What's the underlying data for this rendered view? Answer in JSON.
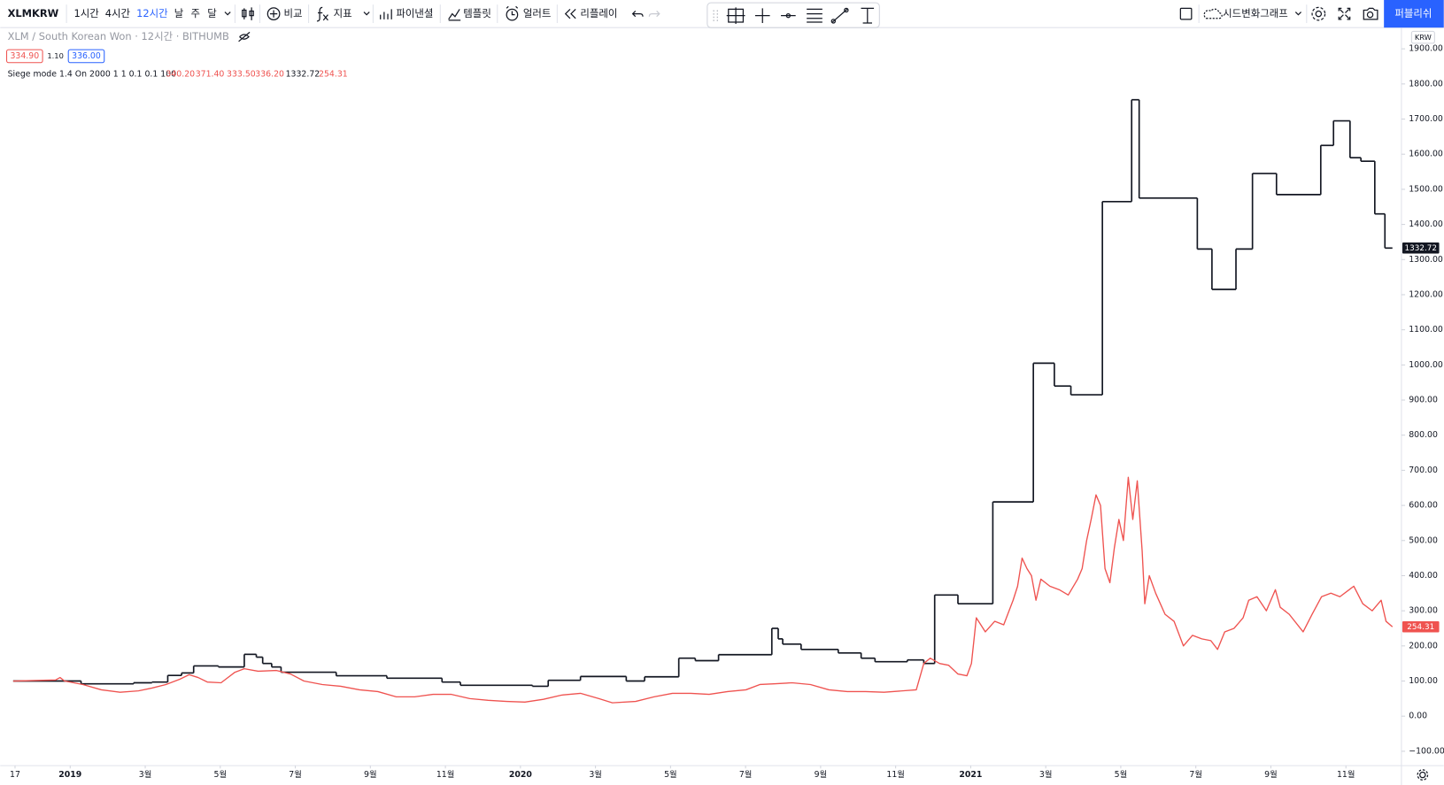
{
  "toolbar": {
    "symbol": "XLMKRW",
    "intervals": [
      "1시간",
      "4시간",
      "12시간",
      "날",
      "주",
      "달"
    ],
    "compare": "비교",
    "indicators": "지표",
    "financials": "파이낸셜",
    "templates": "템플릿",
    "alert": "얼러트",
    "replay": "리플레이",
    "layout_name": "시드변화그래프",
    "publish": "퍼블리쉬"
  },
  "legend": {
    "symbol_title": "XLM / South Korean Won · 12시간 · BITHUMB",
    "sell": "334.90",
    "spread": "1.10",
    "buy": "336.00",
    "indicator": "Siege mode 1.4 On 2000 1 1 0.1 0.1 100",
    "indicator_values": [
      "340.20",
      "371.40",
      "333.50",
      "336.20",
      "1332.72",
      "254.31"
    ]
  },
  "chart_data": {
    "type": "line",
    "currency": "KRW",
    "grid": false,
    "xlim": [
      -1.865,
      35.48
    ],
    "ylim": [
      -141,
      2039
    ],
    "xticks": [
      {
        "value": -1.47,
        "label": "17"
      },
      {
        "value": 0,
        "label": "2019"
      },
      {
        "value": 2,
        "label": "3월"
      },
      {
        "value": 4,
        "label": "5월"
      },
      {
        "value": 6,
        "label": "7월"
      },
      {
        "value": 8,
        "label": "9월"
      },
      {
        "value": 10,
        "label": "11월"
      },
      {
        "value": 12,
        "label": "2020"
      },
      {
        "value": 14,
        "label": "3월"
      },
      {
        "value": 16,
        "label": "5월"
      },
      {
        "value": 18,
        "label": "7월"
      },
      {
        "value": 20,
        "label": "9월"
      },
      {
        "value": 22,
        "label": "11월"
      },
      {
        "value": 24,
        "label": "2021"
      },
      {
        "value": 26,
        "label": "3월"
      },
      {
        "value": 28,
        "label": "5월"
      },
      {
        "value": 30,
        "label": "7월"
      },
      {
        "value": 32,
        "label": "9월"
      },
      {
        "value": 34,
        "label": "11월"
      }
    ],
    "yticks": [
      {
        "value": -100,
        "label": "−100.00"
      },
      {
        "value": 0,
        "label": "0.00"
      },
      {
        "value": 100,
        "label": "100.00"
      },
      {
        "value": 200,
        "label": "200.00"
      },
      {
        "value": 300,
        "label": "300.00"
      },
      {
        "value": 400,
        "label": "400.00"
      },
      {
        "value": 500,
        "label": "500.00"
      },
      {
        "value": 600,
        "label": "600.00"
      },
      {
        "value": 700,
        "label": "700.00"
      },
      {
        "value": 800,
        "label": "800.00"
      },
      {
        "value": 900,
        "label": "900.00"
      },
      {
        "value": 1000,
        "label": "1000.00"
      },
      {
        "value": 1100,
        "label": "1100.00"
      },
      {
        "value": 1200,
        "label": "1200.00"
      },
      {
        "value": 1300,
        "label": "1300.00"
      },
      {
        "value": 1400,
        "label": "1400.00"
      },
      {
        "value": 1500,
        "label": "1500.00"
      },
      {
        "value": 1600,
        "label": "1600.00"
      },
      {
        "value": 1700,
        "label": "1700.00"
      },
      {
        "value": 1800,
        "label": "1800.00"
      },
      {
        "value": 1900,
        "label": "1900.00"
      }
    ],
    "series": [
      {
        "color": "#131722",
        "step": "after",
        "x": [
          -1.52,
          0.29,
          1.69,
          2.18,
          2.6,
          2.97,
          3.29,
          3.95,
          4.64,
          4.96,
          5.13,
          5.37,
          5.62,
          7.09,
          8.44,
          9.91,
          10.4,
          12.32,
          12.74,
          13.6,
          14.82,
          15.31,
          16.22,
          16.66,
          17.28,
          18.7,
          18.87,
          18.99,
          19.48,
          20.47,
          21.08,
          21.45,
          22.31,
          22.75,
          23.04,
          23.66,
          24.59,
          25.67,
          26.23,
          26.67,
          27.51,
          28.29,
          28.49,
          30.04,
          30.43,
          31.07,
          31.51,
          32.15,
          33.33,
          33.67,
          34.11,
          34.4,
          34.77,
          35.04
        ],
        "values": [
          100,
          92,
          95,
          97,
          116,
          123,
          143,
          140,
          176,
          168,
          150,
          140,
          125,
          115,
          108,
          97,
          88,
          85,
          102,
          113,
          100,
          112,
          165,
          158,
          175,
          250,
          220,
          205,
          190,
          180,
          165,
          155,
          160,
          150,
          345,
          320,
          610,
          1005,
          940,
          915,
          1465,
          1755,
          1475,
          1330,
          1215,
          1330,
          1545,
          1485,
          1625,
          1695,
          1590,
          1580,
          1430,
          1332.72
        ]
      },
      {
        "color": "#ef5350",
        "x": [
          -1.52,
          -0.39,
          -0.27,
          -0.15,
          0.34,
          0.83,
          1.33,
          1.82,
          2.18,
          2.55,
          2.92,
          3.17,
          3.41,
          3.66,
          4.02,
          4.39,
          4.64,
          5.01,
          5.5,
          5.87,
          6.23,
          6.72,
          7.21,
          7.71,
          8.2,
          8.69,
          9.18,
          9.67,
          10.16,
          10.65,
          11.14,
          11.63,
          12.12,
          12.61,
          13.1,
          13.6,
          14.09,
          14.45,
          15.07,
          15.56,
          16.05,
          16.54,
          17.03,
          17.52,
          18.01,
          18.38,
          18.75,
          19.24,
          19.73,
          20.22,
          20.71,
          21.2,
          21.69,
          22.18,
          22.55,
          22.75,
          22.92,
          23.17,
          23.41,
          23.66,
          23.9,
          24.02,
          24.15,
          24.27,
          24.39,
          24.64,
          24.88,
          25.13,
          25.25,
          25.37,
          25.5,
          25.62,
          25.74,
          25.87,
          26.11,
          26.36,
          26.6,
          26.85,
          26.97,
          27.09,
          27.21,
          27.34,
          27.46,
          27.58,
          27.71,
          27.83,
          27.95,
          28.07,
          28.2,
          28.32,
          28.44,
          28.57,
          28.64,
          28.76,
          28.93,
          29.18,
          29.42,
          29.67,
          29.91,
          30.16,
          30.4,
          30.58,
          30.77,
          31.02,
          31.26,
          31.41,
          31.63,
          31.88,
          32.12,
          32.25,
          32.49,
          32.86,
          33.1,
          33.35,
          33.6,
          33.84,
          34.21,
          34.45,
          34.7,
          34.94,
          35.07,
          35.24
        ],
        "values": [
          100,
          103,
          110,
          100,
          90,
          75,
          68,
          72,
          80,
          90,
          105,
          118,
          110,
          97,
          95,
          125,
          135,
          128,
          130,
          120,
          100,
          90,
          85,
          75,
          70,
          55,
          55,
          62,
          62,
          50,
          45,
          42,
          40,
          48,
          60,
          65,
          50,
          38,
          42,
          55,
          65,
          65,
          62,
          70,
          75,
          90,
          92,
          95,
          90,
          75,
          70,
          70,
          68,
          72,
          75,
          150,
          165,
          150,
          145,
          120,
          115,
          150,
          280,
          260,
          240,
          270,
          260,
          330,
          370,
          450,
          420,
          400,
          330,
          390,
          370,
          360,
          345,
          390,
          420,
          500,
          560,
          630,
          600,
          420,
          380,
          480,
          560,
          500,
          680,
          560,
          670,
          470,
          320,
          400,
          350,
          290,
          270,
          200,
          230,
          220,
          215,
          190,
          240,
          250,
          280,
          330,
          340,
          300,
          360,
          310,
          290,
          240,
          290,
          340,
          350,
          340,
          370,
          320,
          300,
          330,
          270,
          254.31
        ]
      }
    ]
  }
}
